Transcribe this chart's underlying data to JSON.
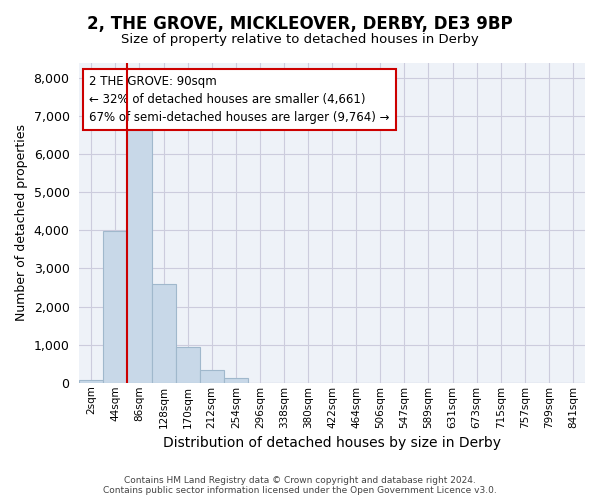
{
  "title_line1": "2, THE GROVE, MICKLEOVER, DERBY, DE3 9BP",
  "title_line2": "Size of property relative to detached houses in Derby",
  "xlabel": "Distribution of detached houses by size in Derby",
  "ylabel": "Number of detached properties",
  "annotation_title": "2 THE GROVE: 90sqm",
  "annotation_line2": "← 32% of detached houses are smaller (4,661)",
  "annotation_line3": "67% of semi-detached houses are larger (9,764) →",
  "footer_line1": "Contains HM Land Registry data © Crown copyright and database right 2024.",
  "footer_line2": "Contains public sector information licensed under the Open Government Licence v3.0.",
  "property_size_sqm": 90,
  "bin_labels": [
    "2sqm",
    "44sqm",
    "86sqm",
    "128sqm",
    "170sqm",
    "212sqm",
    "254sqm",
    "296sqm",
    "338sqm",
    "380sqm",
    "422sqm",
    "464sqm",
    "506sqm",
    "547sqm",
    "589sqm",
    "631sqm",
    "673sqm",
    "715sqm",
    "757sqm",
    "799sqm",
    "841sqm"
  ],
  "bar_values": [
    60,
    3980,
    6620,
    2600,
    950,
    330,
    130,
    0,
    0,
    0,
    0,
    0,
    0,
    0,
    0,
    0,
    0,
    0,
    0,
    0,
    0
  ],
  "bar_color": "#c8d8e8",
  "bar_edge_color": "#a0b8cc",
  "bar_width": 1.0,
  "property_line_color": "#cc0000",
  "annotation_box_color": "#cc0000",
  "ylim": [
    0,
    8400
  ],
  "yticks": [
    0,
    1000,
    2000,
    3000,
    4000,
    5000,
    6000,
    7000,
    8000
  ],
  "grid_color": "#ccccdd",
  "background_color": "#ffffff",
  "plot_bg_color": "#eef2f8"
}
